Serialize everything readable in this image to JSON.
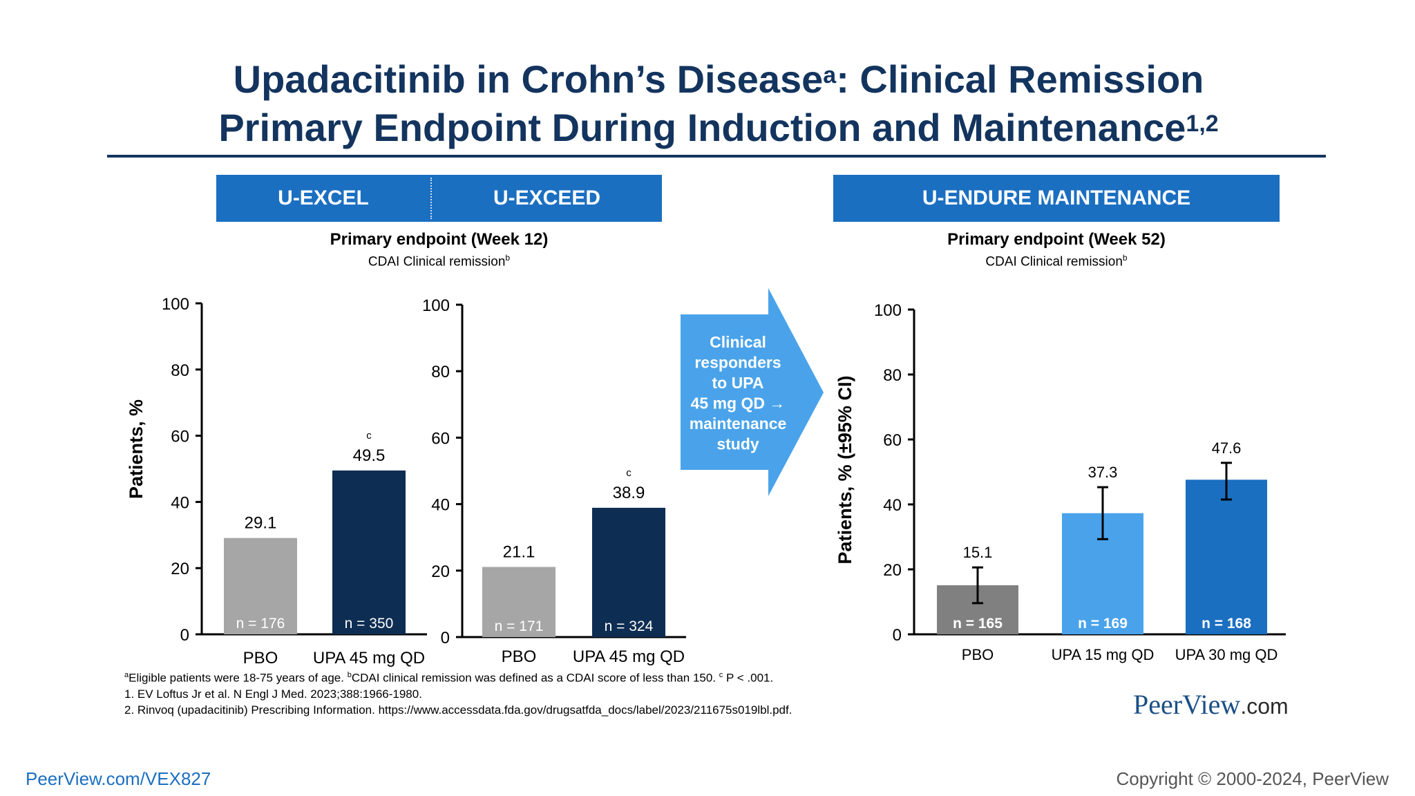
{
  "slide": {
    "title_line1": "Upadacitinib in Crohn’s Disease",
    "title_sup1": "a",
    "title_line1_rest": ": Clinical Remission",
    "title_line2": "Primary Endpoint During Induction and Maintenance",
    "title_sup2": "1,2",
    "bands": {
      "excel": "U-EXCEL",
      "exceed": "U-EXCEED",
      "endure": "U-ENDURE MAINTENANCE"
    },
    "induction_header": "Primary endpoint (Week 12)",
    "induction_subheader": "CDAI Clinical remission",
    "maintenance_header": "Primary endpoint (Week 52)",
    "maintenance_subheader": "CDAI Clinical remission",
    "subheader_sup": "b",
    "arrow_text": [
      "Clinical",
      "responders",
      "to UPA",
      "45 mg QD →",
      "maintenance",
      "study"
    ],
    "footnote1_a": "a",
    "footnote1_text_a": "Eligible patients were 18-75 years of age.  ",
    "footnote1_b": "b",
    "footnote1_text_b": "CDAI clinical remission was defined as a CDAI score of less than 150. ",
    "footnote1_c": "c",
    "footnote1_text_c": " P < .001.",
    "footnote2": "1. EV Loftus Jr et al. N Engl J Med. 2023;388:1966-1980.",
    "footnote3": "2. Rinvoq (upadacitinib) Prescribing Information. https://www.accessdata.fda.gov/drugsatfda_docs/label/2023/211675s019lbl.pdf.",
    "brand_name": "PeerView",
    "brand_suffix": ".com",
    "footer_link": "PeerView.com/VEX827",
    "copyright": "Copyright © 2000-2024, PeerView"
  },
  "colors": {
    "navy": "#13345e",
    "band_blue": "#1b6fc1",
    "pbo_gray": "#a6a6a6",
    "upa_navy": "#0e2d52",
    "pbo_dark_gray": "#808080",
    "upa15_light_blue": "#4aa3ea",
    "upa30_blue": "#1b6fc1",
    "arrow_blue": "#4aa3ea"
  },
  "chart_data": [
    {
      "type": "bar",
      "study": "U-EXCEL",
      "categories": [
        "PBO",
        "UPA 45 mg QD"
      ],
      "values": [
        29.1,
        49.5
      ],
      "n_labels": [
        "n = 176",
        "n = 350"
      ],
      "significance": [
        "",
        "c"
      ],
      "ylabel": "Patients, %",
      "ylim": [
        0,
        100
      ],
      "yticks": [
        0,
        20,
        40,
        60,
        80,
        100
      ]
    },
    {
      "type": "bar",
      "study": "U-EXCEED",
      "categories": [
        "PBO",
        "UPA 45 mg QD"
      ],
      "values": [
        21.1,
        38.9
      ],
      "n_labels": [
        "n = 171",
        "n = 324"
      ],
      "significance": [
        "",
        "c"
      ],
      "ylabel": "",
      "ylim": [
        0,
        100
      ],
      "yticks": [
        0,
        20,
        40,
        60,
        80,
        100
      ]
    },
    {
      "type": "bar",
      "study": "U-ENDURE MAINTENANCE",
      "categories": [
        "PBO",
        "UPA 15 mg QD",
        "UPA 30 mg QD"
      ],
      "values": [
        15.1,
        37.3,
        47.6
      ],
      "ci_low": [
        9.6,
        29.3,
        41.5
      ],
      "ci_high": [
        20.6,
        45.3,
        52.8
      ],
      "n_labels": [
        "n = 165",
        "n = 169",
        "n = 168"
      ],
      "ylabel": "Patients, % (±95% CI)",
      "ylim": [
        0,
        100
      ],
      "yticks": [
        0,
        20,
        40,
        60,
        80,
        100
      ]
    }
  ]
}
